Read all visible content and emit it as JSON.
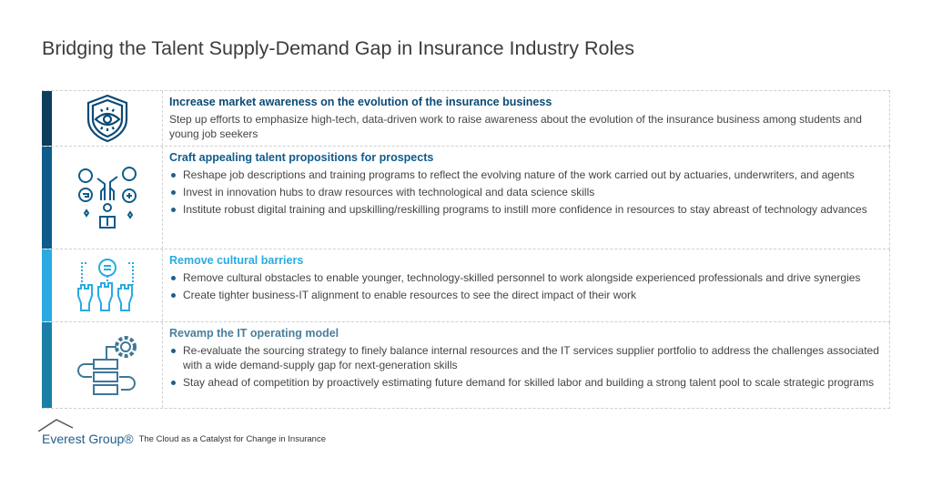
{
  "title": "Bridging the Talent Supply-Demand Gap in Insurance Industry Roles",
  "colors": {
    "row1": "#0b3d5e",
    "row2": "#0f5b8c",
    "row3": "#29abe2",
    "row4": "#1b7ea6"
  },
  "rows": [
    {
      "icon": "shield-eye-icon",
      "heading": "Increase market awareness on the evolution of the insurance business",
      "body": "Step up efforts to emphasize high-tech, data-driven work to raise awareness about the evolution of the insurance business among students and young job seekers"
    },
    {
      "icon": "talent-proposition-icon",
      "heading": "Craft appealing talent propositions for prospects",
      "bullets": [
        "Reshape job descriptions and training programs to reflect the evolving nature of the work carried out by actuaries, underwriters, and agents",
        "Invest in innovation hubs to draw resources with technological and data science skills",
        "Institute robust digital training and upskilling/reskilling programs to instill more confidence in resources to stay abreast of technology advances"
      ]
    },
    {
      "icon": "raised-hands-icon",
      "heading": "Remove cultural barriers",
      "bullets": [
        "Remove cultural obstacles to enable younger, technology-skilled personnel to work alongside experienced professionals and drive synergies",
        "Create tighter business-IT alignment to enable resources to see the direct impact of their work"
      ]
    },
    {
      "icon": "gear-process-icon",
      "heading": "Revamp the IT operating model",
      "bullets": [
        "Re-evaluate the sourcing strategy to finely balance internal resources and the IT services supplier portfolio to address the challenges associated with a wide demand-supply gap for next-generation skills",
        "Stay ahead of competition by proactively estimating future demand for skilled labor and building a strong talent pool to scale strategic programs"
      ]
    }
  ],
  "footer": {
    "logo": "Everest Group®",
    "caption": "The Cloud as a Catalyst for Change in Insurance"
  }
}
